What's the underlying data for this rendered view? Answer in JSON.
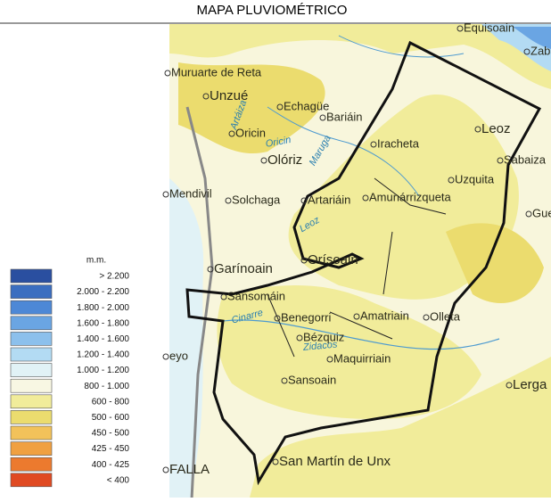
{
  "title": "MAPA PLUVIOMÉTRICO",
  "legend": {
    "unit": "m.m.",
    "items": [
      {
        "label": "> 2.200",
        "color": "#2a4fa0"
      },
      {
        "label": "2.000 - 2.200",
        "color": "#3b6ec0"
      },
      {
        "label": "1.800 - 2.000",
        "color": "#4d88d6"
      },
      {
        "label": "1.600 - 1.800",
        "color": "#6aa5e3"
      },
      {
        "label": "1.400 - 1.600",
        "color": "#8cc0ec"
      },
      {
        "label": "1.200 - 1.400",
        "color": "#b3dbf3"
      },
      {
        "label": "1.000 - 1.200",
        "color": "#e1f2f6"
      },
      {
        "label": "800 - 1.000",
        "color": "#f8f7e3"
      },
      {
        "label": "600 - 800",
        "color": "#f1ec9a"
      },
      {
        "label": "500 - 600",
        "color": "#ebdc6e"
      },
      {
        "label": "450 - 500",
        "color": "#f2c25a"
      },
      {
        "label": "425 - 450",
        "color": "#f0a040"
      },
      {
        "label": "400 - 425",
        "color": "#ec7a2e"
      },
      {
        "label": "< 400",
        "color": "#e04a22"
      }
    ]
  },
  "places": [
    "Equisoain",
    "Zabalz",
    "Muruarte de Reta",
    "Unzué",
    "Echagüe",
    "Bariáin",
    "Oricin",
    "Olóriz",
    "Iracheta",
    "Leoz",
    "Sabaiza",
    "Uzquita",
    "Amunárrizqueta",
    "Artariáin",
    "Mendivil",
    "Solchaga",
    "Guetad",
    "Garínoain",
    "Orísoain",
    "Sansomáin",
    "Benegorri",
    "Amatriain",
    "Olleta",
    "Bézquiz",
    "Maquirriain",
    "Sansoain",
    "Lerga",
    "San Martín de Unx",
    "FALLA",
    "eyo"
  ],
  "rivers": [
    "Artáiza",
    "Oricin",
    "Maruga",
    "Leoz",
    "Cinarre",
    "Zidacos"
  ]
}
